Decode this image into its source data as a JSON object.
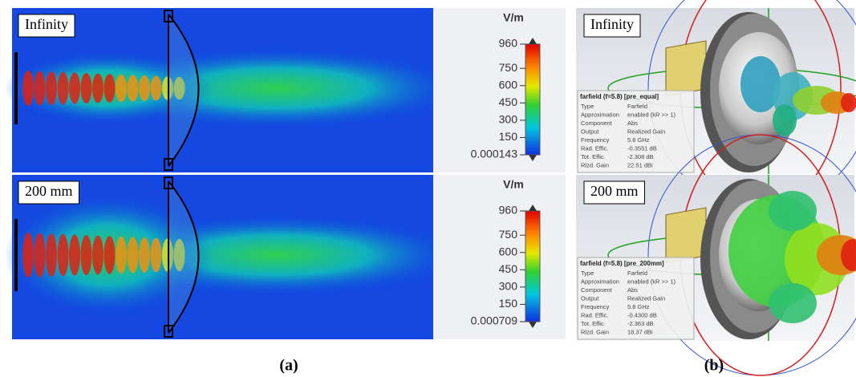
{
  "panel_a": {
    "caption": "(a)",
    "rows": [
      {
        "label": "Infinity",
        "colorbar": {
          "unit": "V/m",
          "ticks": [
            960,
            750,
            600,
            450,
            300,
            150,
            0.000143
          ]
        }
      },
      {
        "label": "200 mm",
        "colorbar": {
          "unit": "V/m",
          "ticks": [
            960,
            750,
            600,
            450,
            300,
            150,
            0.000709
          ]
        }
      }
    ]
  },
  "panel_b": {
    "caption": "(b)",
    "rows": [
      {
        "label": "Infinity",
        "info": {
          "title": "farfield (f=5.8) [pre_equal]",
          "rows": [
            [
              "Type",
              "Farfield"
            ],
            [
              "Approximation",
              "enabled (kR >> 1)"
            ],
            [
              "Component",
              "Abs"
            ],
            [
              "Output",
              "Realized Gain"
            ],
            [
              "Frequency",
              "5.8 GHz"
            ],
            [
              "Rad. Effic.",
              "-0.3551 dB"
            ],
            [
              "Tot. Effic.",
              "-2.308 dB"
            ],
            [
              "Rlzd. Gain",
              "22.51 dBi"
            ]
          ]
        }
      },
      {
        "label": "200 mm",
        "info": {
          "title": "farfield (f=5.8) [pre_200mm]",
          "rows": [
            [
              "Type",
              "Farfield"
            ],
            [
              "Approximation",
              "enabled (kR >> 1)"
            ],
            [
              "Component",
              "Abs"
            ],
            [
              "Output",
              "Realized Gain"
            ],
            [
              "Frequency",
              "5.8 GHz"
            ],
            [
              "Rad. Effic.",
              "-0.4300 dB"
            ],
            [
              "Tot. Effic.",
              "-2.363 dB"
            ],
            [
              "Rlzd. Gain",
              "18.37 dBi"
            ]
          ]
        }
      }
    ]
  }
}
